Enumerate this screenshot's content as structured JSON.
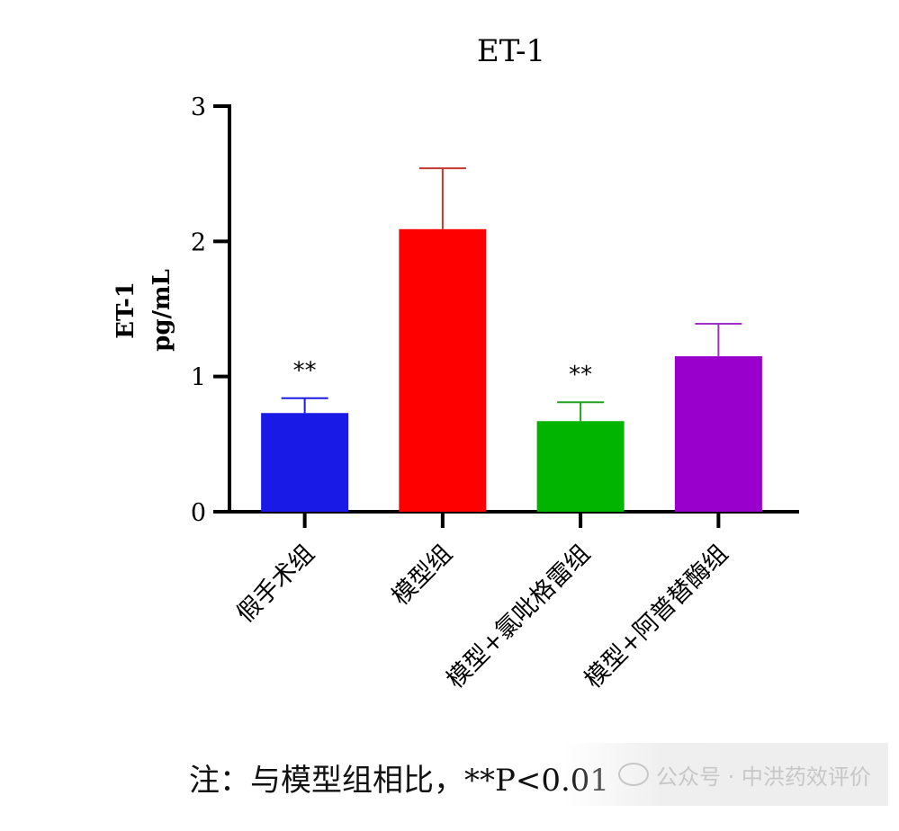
{
  "chart_data": {
    "type": "bar",
    "title": "ET-1",
    "ylabel_lines": [
      "ET-1",
      "pg/mL"
    ],
    "ylim": [
      0,
      3
    ],
    "yticks": [
      "0",
      "1",
      "2",
      "3"
    ],
    "categories": [
      "假手术组",
      "模型组",
      "模型+氯吡格雷组",
      "模型+阿普替酶组"
    ],
    "values": [
      0.73,
      2.09,
      0.67,
      1.15
    ],
    "errors": [
      0.11,
      0.45,
      0.14,
      0.24
    ],
    "colors": [
      "#1a1ae6",
      "#ff0000",
      "#00b400",
      "#9900cc"
    ],
    "error_colors": [
      "#1a1ae6",
      "#c0392b",
      "#22a022",
      "#9b30c8"
    ],
    "significance": [
      "**",
      "",
      "**",
      ""
    ]
  },
  "note": "注：与模型组相比，**P<0.01",
  "watermark": "公众号 · 中洪药效评价"
}
